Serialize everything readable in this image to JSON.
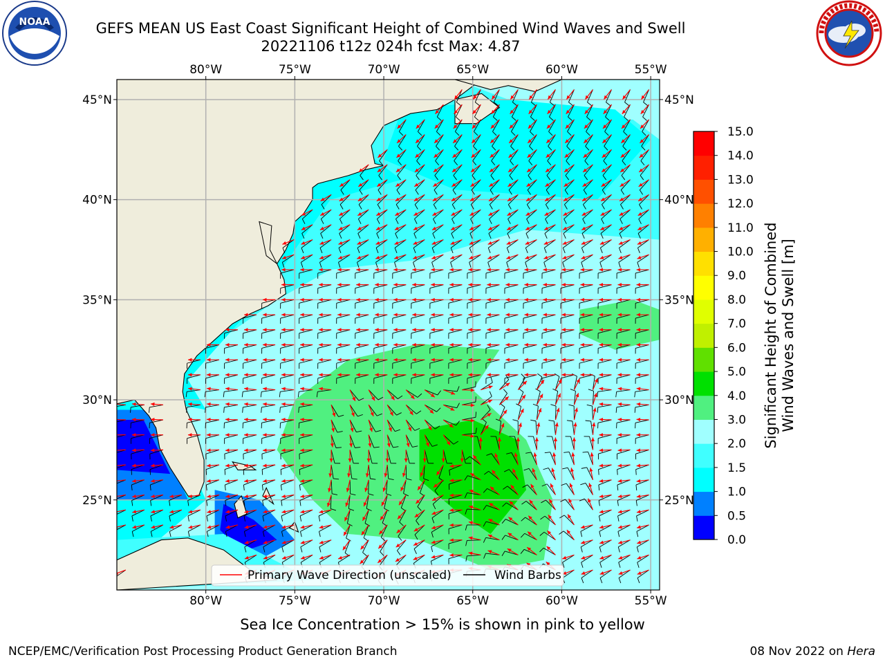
{
  "header": {
    "title_line1": "GEFS MEAN US East Coast Significant Height of Combined Wind Waves and Swell",
    "title_line2": "20221106 t12z 024h fcst   Max: 4.87"
  },
  "logos": {
    "left": "NOAA",
    "right": "NATIONAL WEATHER SERVICE"
  },
  "map": {
    "lon_labels": [
      "80°W",
      "75°W",
      "70°W",
      "65°W",
      "60°W",
      "55°W"
    ],
    "lat_labels": [
      "45°N",
      "40°N",
      "35°N",
      "30°N",
      "25°N"
    ],
    "extent": {
      "lon": [
        -85,
        -54.5
      ],
      "lat": [
        20.5,
        46
      ]
    }
  },
  "legend": {
    "wave_dir": "Primary Wave Direction (unscaled)",
    "wind_barbs": "Wind Barbs",
    "wave_color": "#ff0000",
    "barb_color": "#000000"
  },
  "colorbar": {
    "label_line1": "Significant Height of Combined",
    "label_line2": "Wind Waves and Swell [m]",
    "ticks": [
      "0.0",
      "0.5",
      "1.0",
      "1.5",
      "2.0",
      "3.0",
      "4.0",
      "5.0",
      "6.0",
      "7.0",
      "8.0",
      "9.0",
      "10.0",
      "11.0",
      "12.0",
      "13.0",
      "14.0",
      "15.0"
    ],
    "colors": [
      "#0000ff",
      "#0080ff",
      "#00ffff",
      "#40ffff",
      "#a0ffff",
      "#50f080",
      "#00e000",
      "#60e000",
      "#c0f000",
      "#e0ff00",
      "#ffff00",
      "#ffe000",
      "#ffb000",
      "#ff8000",
      "#ff5000",
      "#ff2000",
      "#ff0000"
    ]
  },
  "subtitle": "Sea Ice Concentration > 15% is shown in pink to yellow",
  "footer": {
    "left": "NCEP/EMC/Verification Post Processing Product Generation Branch",
    "date": "08 Nov 2022 on",
    "system": "Hera"
  }
}
